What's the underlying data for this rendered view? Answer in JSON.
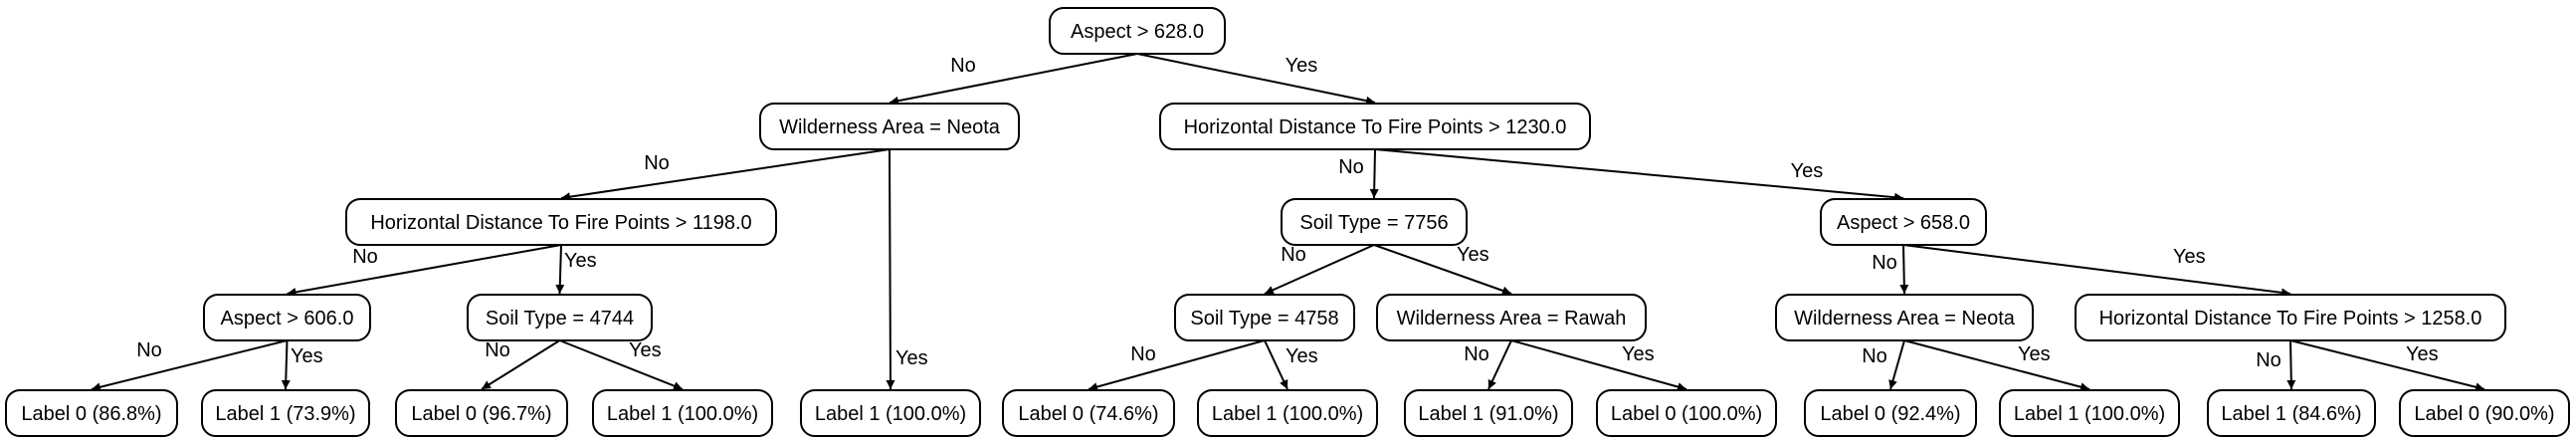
{
  "tree": {
    "colors": {
      "stroke": "#000000",
      "background": "#ffffff",
      "text": "#000000"
    },
    "nodes": [
      {
        "id": "n1",
        "label": "Aspect > 628.0"
      },
      {
        "id": "n2",
        "label": "Wilderness Area = Neota"
      },
      {
        "id": "n3",
        "label": "Horizontal Distance To Fire Points > 1230.0"
      },
      {
        "id": "n4",
        "label": "Horizontal Distance To Fire Points > 1198.0"
      },
      {
        "id": "n5",
        "label": "Label 1 (100.0%)"
      },
      {
        "id": "n6",
        "label": "Aspect > 606.0"
      },
      {
        "id": "n7",
        "label": "Soil Type = 4744"
      },
      {
        "id": "n8",
        "label": "Label 0 (86.8%)"
      },
      {
        "id": "n9",
        "label": "Label 1 (73.9%)"
      },
      {
        "id": "n10",
        "label": "Label 0 (96.7%)"
      },
      {
        "id": "n11",
        "label": "Label 1 (100.0%)"
      },
      {
        "id": "n12",
        "label": "Soil Type = 7756"
      },
      {
        "id": "n13",
        "label": "Aspect > 658.0"
      },
      {
        "id": "n14",
        "label": "Soil Type = 4758"
      },
      {
        "id": "n15",
        "label": "Wilderness Area = Rawah"
      },
      {
        "id": "n16",
        "label": "Label 0 (74.6%)"
      },
      {
        "id": "n17",
        "label": "Label 1 (100.0%)"
      },
      {
        "id": "n18",
        "label": "Label 1 (91.0%)"
      },
      {
        "id": "n19",
        "label": "Label 0 (100.0%)"
      },
      {
        "id": "n20",
        "label": "Wilderness Area = Neota"
      },
      {
        "id": "n21",
        "label": "Horizontal Distance To Fire Points > 1258.0"
      },
      {
        "id": "n22",
        "label": "Label 0 (92.4%)"
      },
      {
        "id": "n23",
        "label": "Label 1 (100.0%)"
      },
      {
        "id": "n24",
        "label": "Label 1 (84.6%)"
      },
      {
        "id": "n25",
        "label": "Label 0 (90.0%)"
      }
    ],
    "edges": [
      {
        "from": "n1",
        "to": "n2",
        "label": "No"
      },
      {
        "from": "n1",
        "to": "n3",
        "label": "Yes"
      },
      {
        "from": "n2",
        "to": "n4",
        "label": "No"
      },
      {
        "from": "n2",
        "to": "n5",
        "label": "Yes"
      },
      {
        "from": "n4",
        "to": "n6",
        "label": "No"
      },
      {
        "from": "n4",
        "to": "n7",
        "label": "Yes"
      },
      {
        "from": "n6",
        "to": "n8",
        "label": "No"
      },
      {
        "from": "n6",
        "to": "n9",
        "label": "Yes"
      },
      {
        "from": "n7",
        "to": "n10",
        "label": "No"
      },
      {
        "from": "n7",
        "to": "n11",
        "label": "Yes"
      },
      {
        "from": "n3",
        "to": "n12",
        "label": "No"
      },
      {
        "from": "n3",
        "to": "n13",
        "label": "Yes"
      },
      {
        "from": "n12",
        "to": "n14",
        "label": "No"
      },
      {
        "from": "n12",
        "to": "n15",
        "label": "Yes"
      },
      {
        "from": "n14",
        "to": "n16",
        "label": "No"
      },
      {
        "from": "n14",
        "to": "n17",
        "label": "Yes"
      },
      {
        "from": "n15",
        "to": "n18",
        "label": "No"
      },
      {
        "from": "n15",
        "to": "n19",
        "label": "Yes"
      },
      {
        "from": "n13",
        "to": "n20",
        "label": "No"
      },
      {
        "from": "n13",
        "to": "n21",
        "label": "Yes"
      },
      {
        "from": "n20",
        "to": "n22",
        "label": "No"
      },
      {
        "from": "n20",
        "to": "n23",
        "label": "Yes"
      },
      {
        "from": "n21",
        "to": "n24",
        "label": "No"
      },
      {
        "from": "n21",
        "to": "n25",
        "label": "Yes"
      }
    ]
  }
}
